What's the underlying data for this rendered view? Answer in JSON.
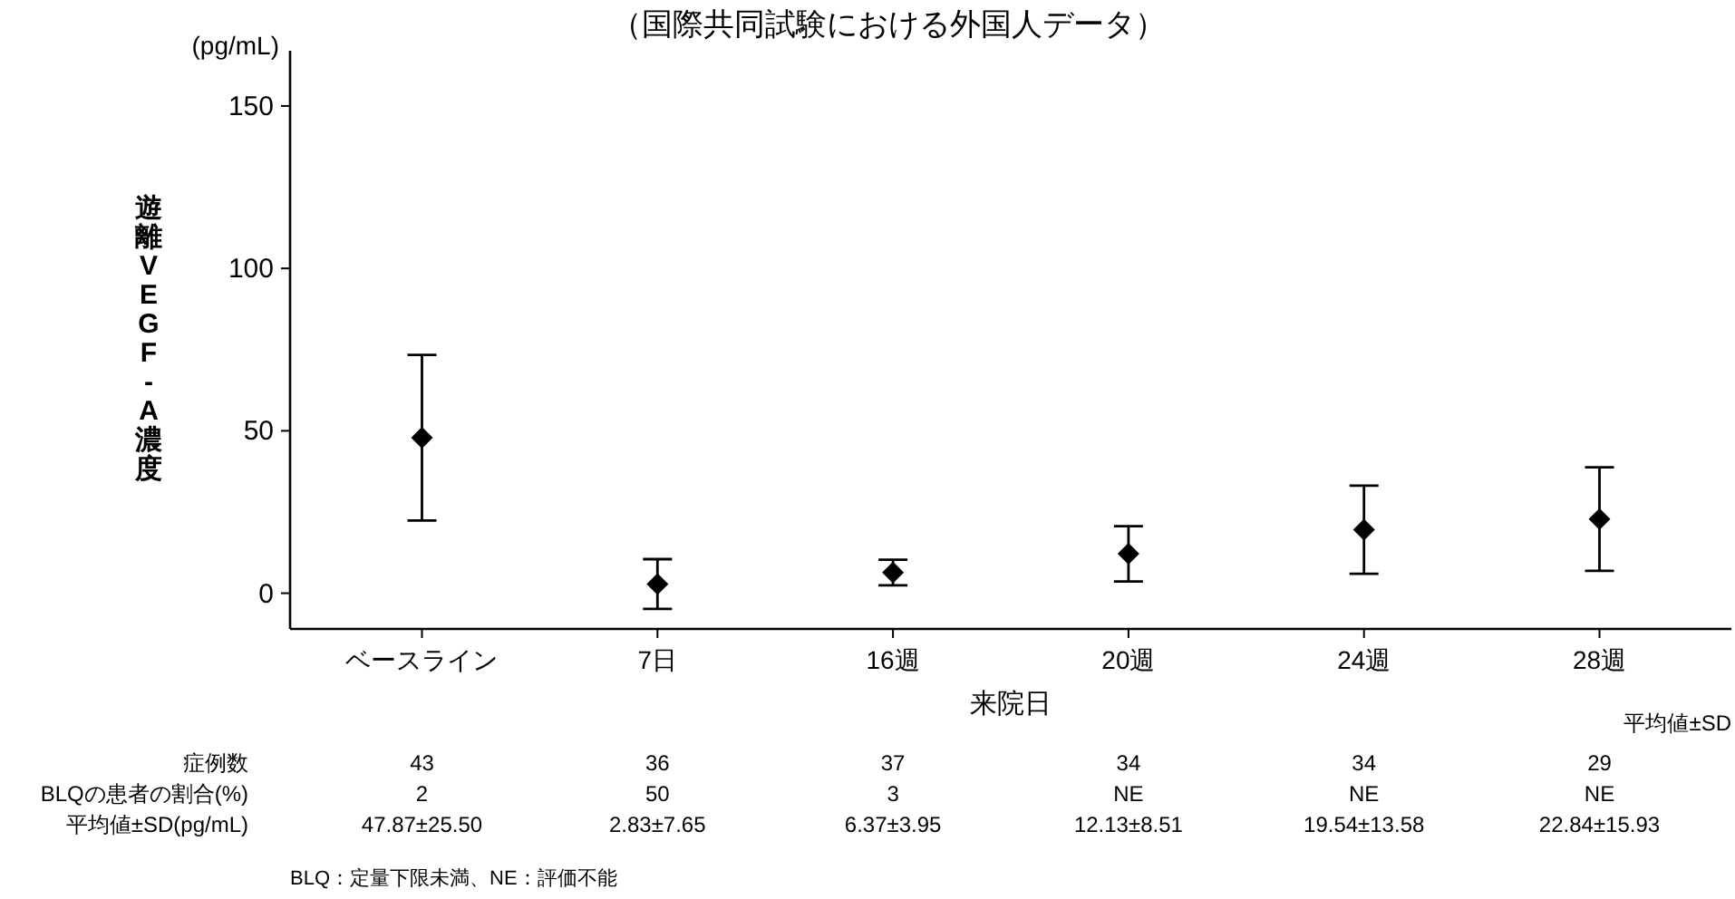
{
  "chart_data": {
    "type": "scatter",
    "title": "（国際共同試験における外国人データ）",
    "xlabel": "来院日",
    "ylabel": "遊離VEGF-A濃度",
    "categories": [
      "ベースライン",
      "7日",
      "16週",
      "20週",
      "24週",
      "28週"
    ],
    "values": [
      47.87,
      2.83,
      6.37,
      12.13,
      19.54,
      22.84
    ],
    "errors": [
      25.5,
      7.65,
      3.95,
      8.51,
      13.58,
      15.93
    ],
    "value_labels": [
      "47.87±25.50",
      "2.83±7.65",
      "6.37±3.95",
      "12.13±8.51",
      "19.54±13.58",
      "22.84±15.93"
    ],
    "color": "#000000",
    "marker": "diamond",
    "ylim": [
      -11,
      167
    ],
    "yticks": [
      0,
      50,
      100,
      150
    ],
    "grid": false,
    "annotations": [
      "(pg/mL)",
      "平均値±SD",
      "症例数",
      "43",
      "36",
      "37",
      "34",
      "34",
      "29",
      "BLQの患者の割合(%)",
      "2",
      "50",
      "3",
      "NE",
      "NE",
      "NE",
      "平均値±SD(pg/mL)",
      "BLQ：定量下限未満、NE：評価不能"
    ]
  }
}
